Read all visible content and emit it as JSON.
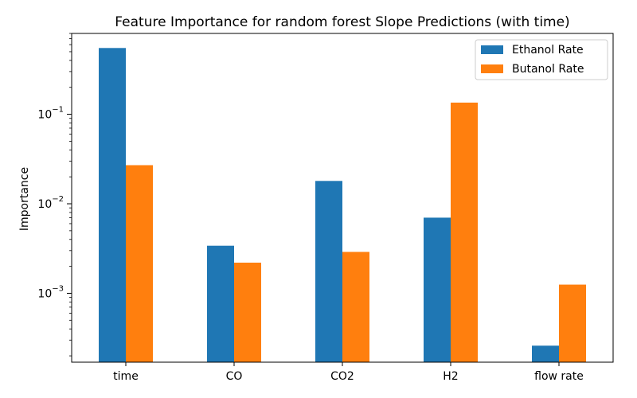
{
  "chart_data": {
    "type": "bar",
    "title": "Feature Importance for random forest Slope Predictions (with time)",
    "xlabel": "",
    "ylabel": "Importance",
    "yscale": "log",
    "ylim": [
      0.00017,
      0.8
    ],
    "categories": [
      "time",
      "CO",
      "CO2",
      "H2",
      "flow rate"
    ],
    "series": [
      {
        "name": "Ethanol Rate",
        "color": "#1f77b4",
        "values": [
          0.55,
          0.0034,
          0.018,
          0.007,
          0.00026
        ]
      },
      {
        "name": "Butanol Rate",
        "color": "#ff7f0e",
        "values": [
          0.027,
          0.0022,
          0.0029,
          0.135,
          0.00125
        ]
      }
    ],
    "y_ticks": [
      {
        "value": 0.001,
        "base": "10",
        "exponent": "−3"
      },
      {
        "value": 0.01,
        "base": "10",
        "exponent": "−2"
      },
      {
        "value": 0.1,
        "base": "10",
        "exponent": "−1"
      }
    ],
    "legend_position": "top-right",
    "grid": false
  }
}
